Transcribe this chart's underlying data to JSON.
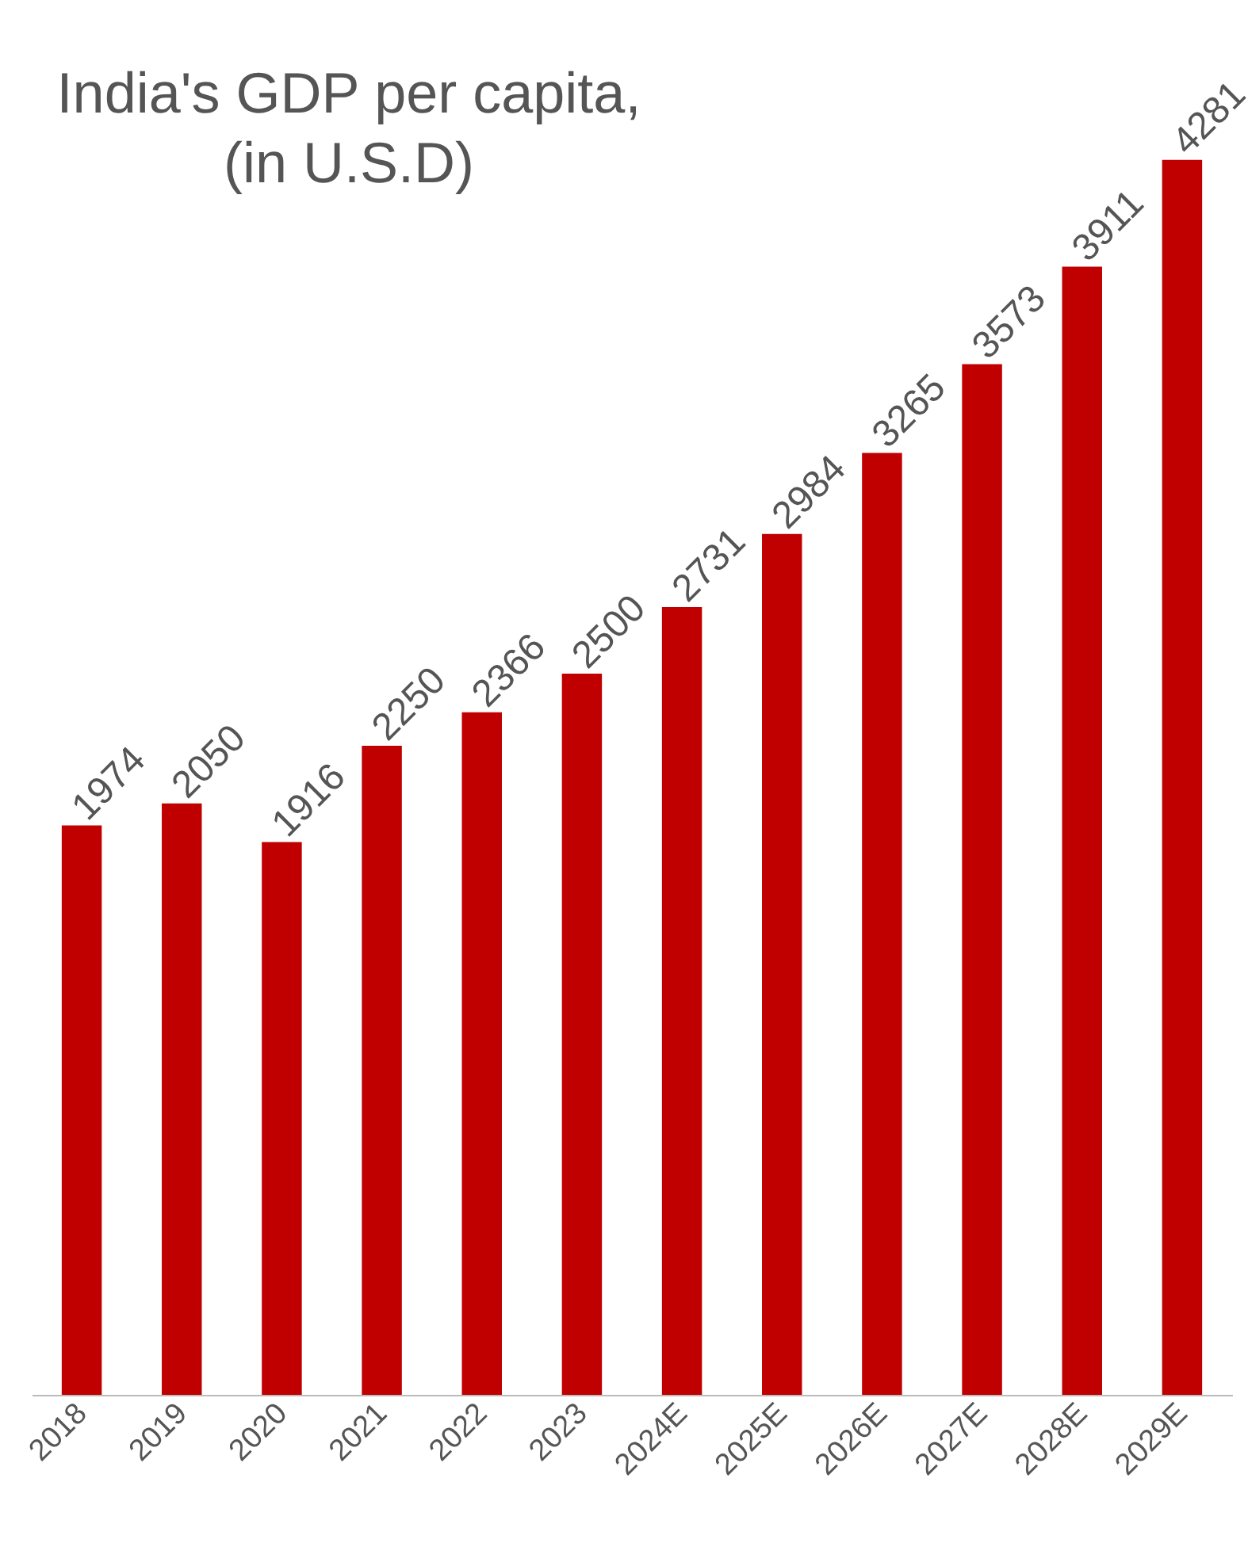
{
  "chart_data": {
    "type": "bar",
    "title": "India's GDP per capita,\n(in U.S.D)",
    "categories": [
      "2018",
      "2019",
      "2020",
      "2021",
      "2022",
      "2023",
      "2024E",
      "2025E",
      "2026E",
      "2027E",
      "2028E",
      "2029E"
    ],
    "values": [
      1974,
      2050,
      1916,
      2250,
      2366,
      2500,
      2731,
      2984,
      3265,
      3573,
      3911,
      4281
    ],
    "color": "#c00000",
    "data_labels": true,
    "tick_labels": "x",
    "grid": false
  }
}
